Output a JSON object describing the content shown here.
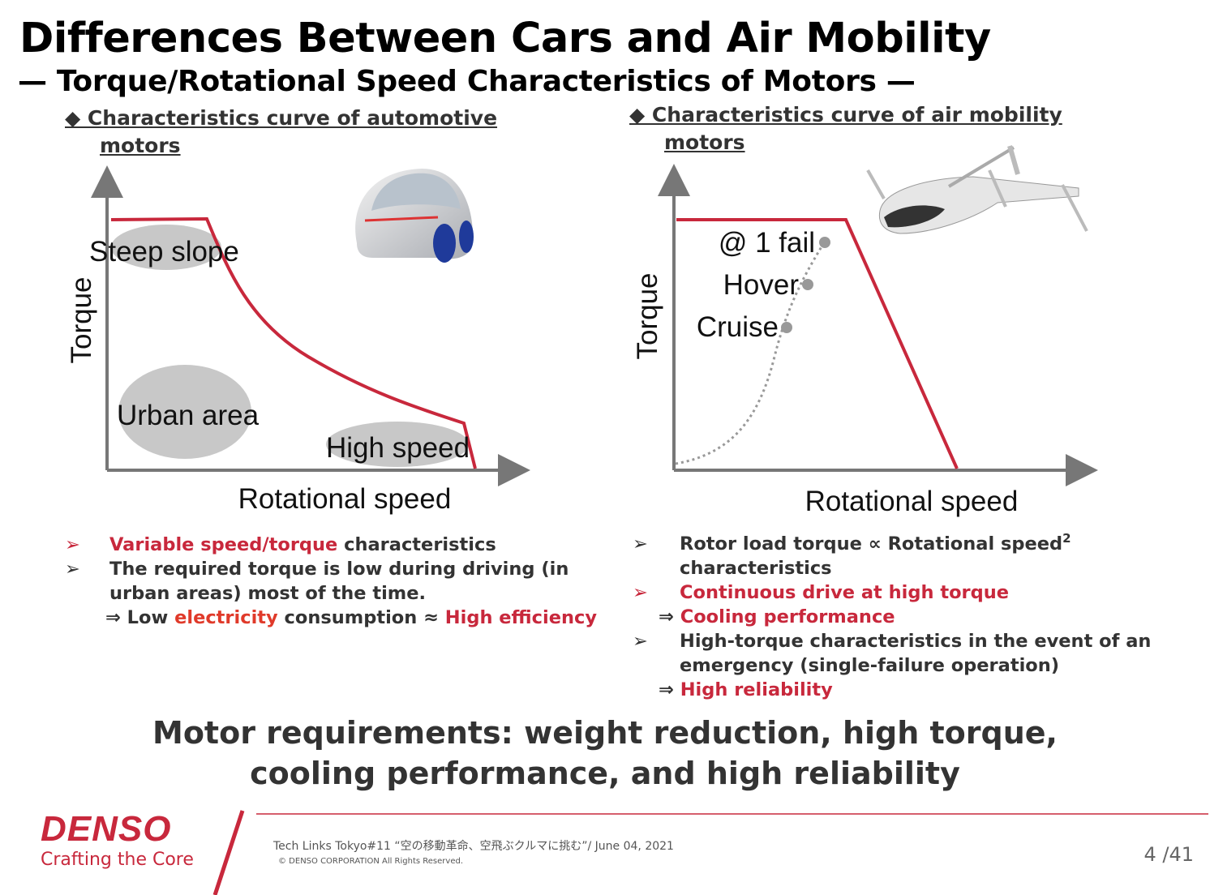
{
  "header": {
    "title": "Differences Between Cars and Air Mobility",
    "subtitle": "— Torque/Rotational Speed Characteristics of Motors —"
  },
  "left": {
    "heading": [
      "◆ Characteristics curve of automotive",
      "motors"
    ],
    "diagram": {
      "y_label": "Torque",
      "x_label": "Rotational speed",
      "regions": [
        "Steep slope",
        "Urban area",
        "High speed"
      ]
    },
    "bullets": [
      {
        "marker": "➢",
        "marker_color": "#c8283c",
        "lines": [
          [
            {
              "text": "Variable speed/torque",
              "color": "#c8283c"
            },
            {
              "text": " characteristics"
            }
          ]
        ]
      },
      {
        "marker": "➢",
        "lines": [
          [
            {
              "text": "The required torque is low during driving (in"
            }
          ],
          [
            {
              "text": "urban areas) most of the time."
            }
          ],
          [
            {
              "text": "⇒ Low "
            },
            {
              "text": "electricity",
              "color": "#e03a2a"
            },
            {
              "text": " consumption ≈ "
            },
            {
              "text": "High efficiency",
              "color": "#c8283c"
            }
          ]
        ]
      }
    ]
  },
  "right": {
    "heading": [
      "◆ Characteristics curve of air mobility",
      "motors"
    ],
    "diagram": {
      "y_label": "Torque",
      "x_label": "Rotational speed",
      "points": [
        "@ 1 fail",
        "Hover",
        "Cruise"
      ]
    },
    "bullets": [
      {
        "marker": "➢",
        "lines": [
          [
            {
              "text": "Rotor load torque ∝ Rotational speed"
            },
            {
              "text": "2",
              "sup": true
            }
          ],
          [
            {
              "text": "characteristics"
            }
          ]
        ]
      },
      {
        "marker": "➢",
        "marker_color": "#c8283c",
        "lines": [
          [
            {
              "text": "Continuous drive at high torque",
              "color": "#c8283c"
            }
          ],
          [
            {
              "text": "⇒ "
            },
            {
              "text": "Cooling performance",
              "color": "#c8283c"
            }
          ]
        ]
      },
      {
        "marker": "➢",
        "lines": [
          [
            {
              "text": "High-torque characteristics in the event of an"
            }
          ],
          [
            {
              "text": "emergency (single-failure operation)"
            }
          ],
          [
            {
              "text": "⇒ "
            },
            {
              "text": "High reliability",
              "color": "#c8283c"
            }
          ]
        ]
      }
    ]
  },
  "conclusion": [
    "Motor requirements: weight reduction, high torque,",
    "cooling performance, and high reliability"
  ],
  "footer": {
    "brand": "DENSO",
    "tagline": "Crafting the Core",
    "event": "Tech Links Tokyo#11 “空の移動革命、空飛ぶクルマに挑む”/ June 04, 2021",
    "copyright": "© DENSO CORPORATION All Rights Reserved.",
    "page": "4 /41"
  }
}
